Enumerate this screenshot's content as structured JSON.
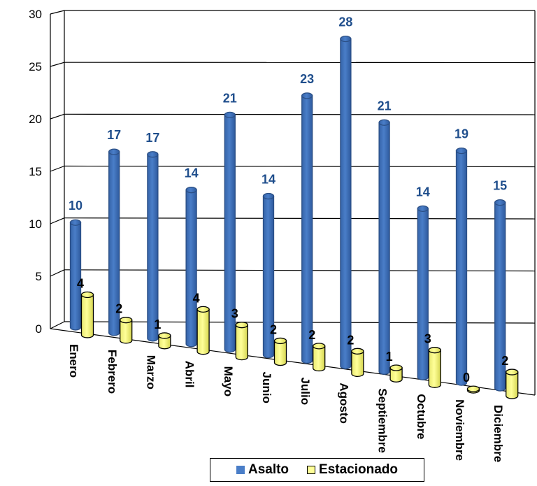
{
  "chart_data": {
    "type": "bar",
    "categories": [
      "Enero",
      "Febrero",
      "Marzo",
      "Abril",
      "Mayo",
      "Junio",
      "Julio",
      "Agosto",
      "Septiembre",
      "Octubre",
      "Noviembre",
      "Diciembre"
    ],
    "series": [
      {
        "name": "Asalto",
        "values": [
          10,
          17,
          17,
          14,
          21,
          14,
          23,
          28,
          21,
          14,
          19,
          15
        ],
        "color": "#4A7EC8"
      },
      {
        "name": "Estacionado",
        "values": [
          4,
          2,
          1,
          4,
          3,
          2,
          2,
          2,
          1,
          3,
          0,
          2
        ],
        "color": "#FFFF99"
      }
    ],
    "yticks": [
      "0",
      "5",
      "10",
      "15",
      "20",
      "25",
      "30"
    ],
    "ylim": [
      0,
      30
    ],
    "grid": true,
    "legend_position": "bottom-right",
    "label_colors": {
      "Asalto": "#1F4E8C",
      "Estacionado": "#000000"
    },
    "title": "",
    "xlabel": "",
    "ylabel": ""
  }
}
